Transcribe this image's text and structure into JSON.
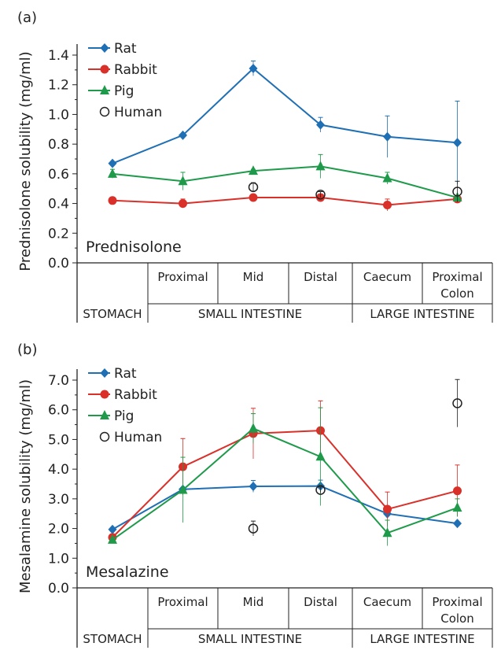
{
  "chart_data": [
    {
      "type": "line",
      "panel_label": "(a)",
      "annotation": "Prednisolone",
      "ylabel": "Prednisolone solubility (mg/ml)",
      "ylim": [
        0,
        1.4
      ],
      "yticks": [
        "0.0",
        "0.2",
        "0.4",
        "0.6",
        "0.8",
        "1.0",
        "1.2",
        "1.4"
      ],
      "categories": [
        "",
        "Proximal",
        "Mid",
        "Distal",
        "Caecum",
        "Proximal Colon"
      ],
      "groups": [
        "STOMACH",
        "SMALL INTESTINE",
        "LARGE INTESTINE"
      ],
      "legend_placement": "top-left",
      "series": [
        {
          "name": "Rat",
          "color": "#1f6fb5",
          "marker": "diamond",
          "values": [
            0.67,
            0.86,
            1.31,
            0.93,
            0.85,
            0.81
          ],
          "err": [
            0.01,
            0.01,
            0.05,
            0.05,
            0.14,
            0.28
          ]
        },
        {
          "name": "Rabbit",
          "color": "#d9302a",
          "marker": "circle",
          "values": [
            0.42,
            0.4,
            0.44,
            0.44,
            0.39,
            0.43
          ],
          "err": [
            0.01,
            0.03,
            0.01,
            0.01,
            0.04,
            0.02
          ]
        },
        {
          "name": "Pig",
          "color": "#1e9a4a",
          "marker": "triangle",
          "values": [
            0.6,
            0.55,
            0.62,
            0.65,
            0.57,
            0.44
          ],
          "err": [
            0.03,
            0.06,
            0.01,
            0.08,
            0.04,
            0.01
          ]
        },
        {
          "name": "Human",
          "color": "#222222",
          "marker": "open-circle",
          "values": [
            null,
            null,
            0.51,
            0.46,
            null,
            0.48
          ],
          "err": [
            null,
            null,
            0.03,
            0.02,
            null,
            0.07
          ]
        }
      ]
    },
    {
      "type": "line",
      "panel_label": "(b)",
      "annotation": "Mesalazine",
      "ylabel": "Mesalamine  solubility (mg/ml)",
      "ylim": [
        0,
        7.0
      ],
      "yticks": [
        "0.0",
        "1.0",
        "2.0",
        "3.0",
        "4.0",
        "5.0",
        "6.0",
        "7.0"
      ],
      "categories": [
        "",
        "Proximal",
        "Mid",
        "Distal",
        "Caecum",
        "Proximal Colon"
      ],
      "groups": [
        "STOMACH",
        "SMALL INTESTINE",
        "LARGE INTESTINE"
      ],
      "legend_placement": "top-left",
      "series": [
        {
          "name": "Rat",
          "color": "#1f6fb5",
          "marker": "diamond",
          "values": [
            1.97,
            3.32,
            3.42,
            3.43,
            2.5,
            2.17
          ],
          "err": [
            0.05,
            0.05,
            0.2,
            0.2,
            0.05,
            0.05
          ]
        },
        {
          "name": "Rabbit",
          "color": "#d9302a",
          "marker": "circle",
          "values": [
            1.7,
            4.08,
            5.2,
            5.3,
            2.65,
            3.27
          ],
          "err": [
            0.1,
            0.95,
            0.85,
            1.0,
            0.58,
            0.87
          ]
        },
        {
          "name": "Pig",
          "color": "#1e9a4a",
          "marker": "triangle",
          "values": [
            1.62,
            3.3,
            5.37,
            4.42,
            1.85,
            2.7
          ],
          "err": [
            0.05,
            1.1,
            0.5,
            1.65,
            0.43,
            0.3
          ]
        },
        {
          "name": "Human",
          "color": "#222222",
          "marker": "open-circle",
          "values": [
            null,
            null,
            2.0,
            3.3,
            null,
            6.22
          ],
          "err": [
            null,
            null,
            0.25,
            0.1,
            null,
            0.8
          ]
        }
      ]
    }
  ]
}
